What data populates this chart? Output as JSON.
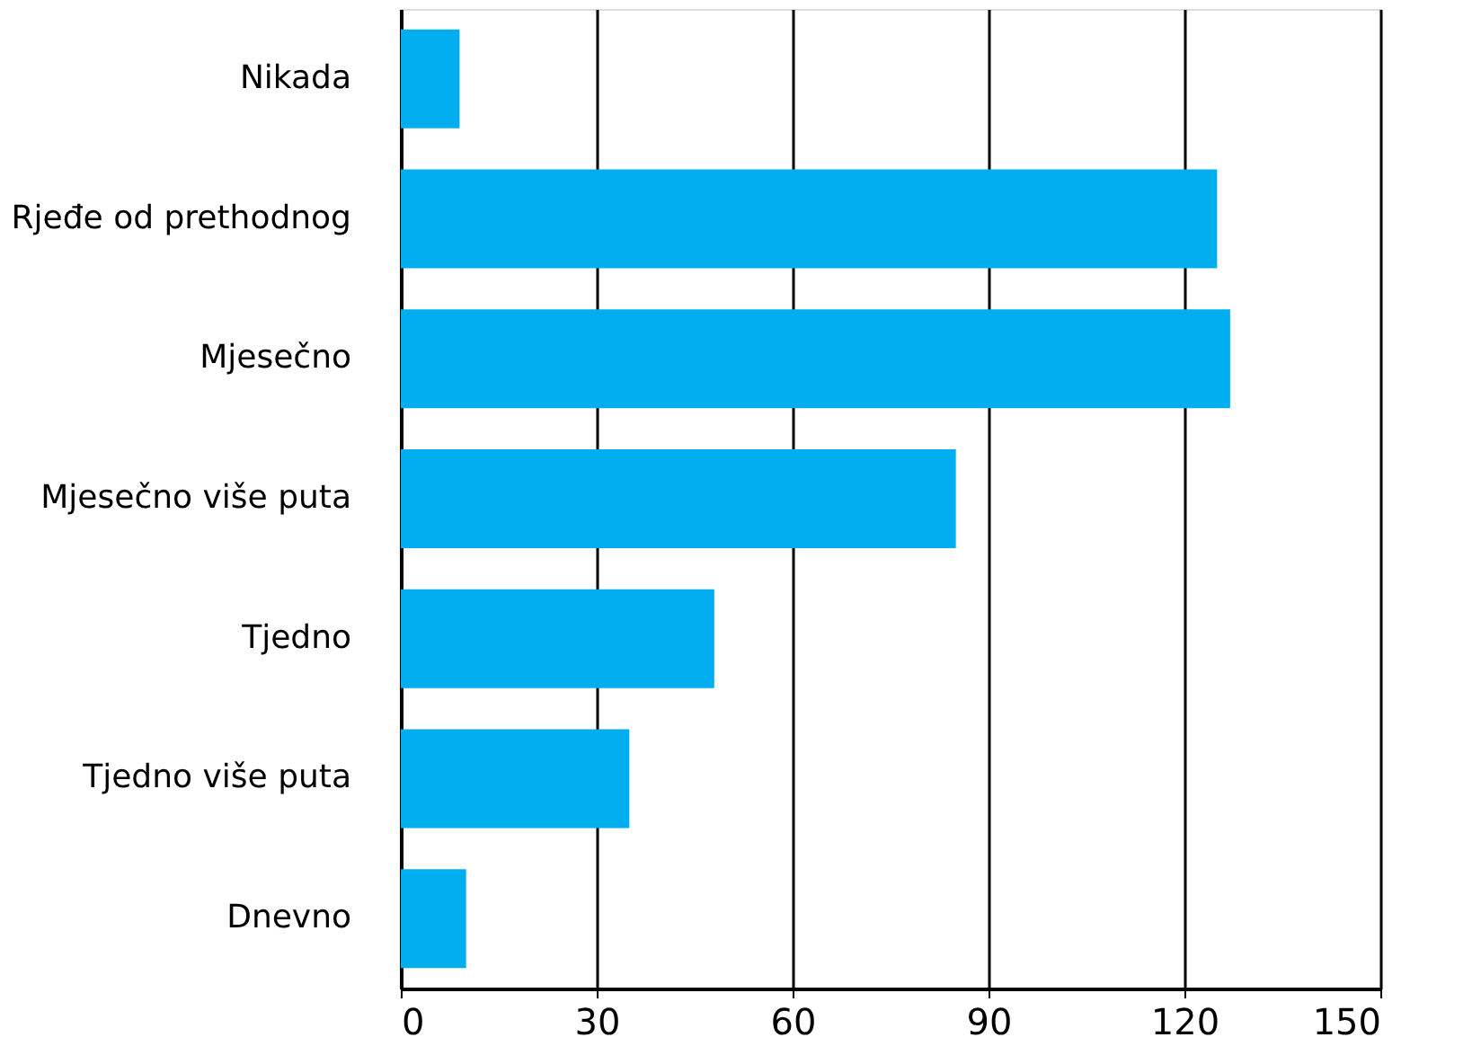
{
  "chart_data": {
    "type": "bar",
    "orientation": "horizontal",
    "categories": [
      "Nikada",
      "Rjeđe od prethodnog",
      "Mjesečno",
      "Mjesečno više puta",
      "Tjedno",
      "Tjedno više puta",
      "Dnevno"
    ],
    "values": [
      9,
      125,
      127,
      85,
      48,
      35,
      10
    ],
    "color": "#00aeef",
    "xlim": [
      0,
      150
    ],
    "xticks": [
      0,
      30,
      60,
      90,
      120,
      150
    ],
    "grid": "x"
  }
}
